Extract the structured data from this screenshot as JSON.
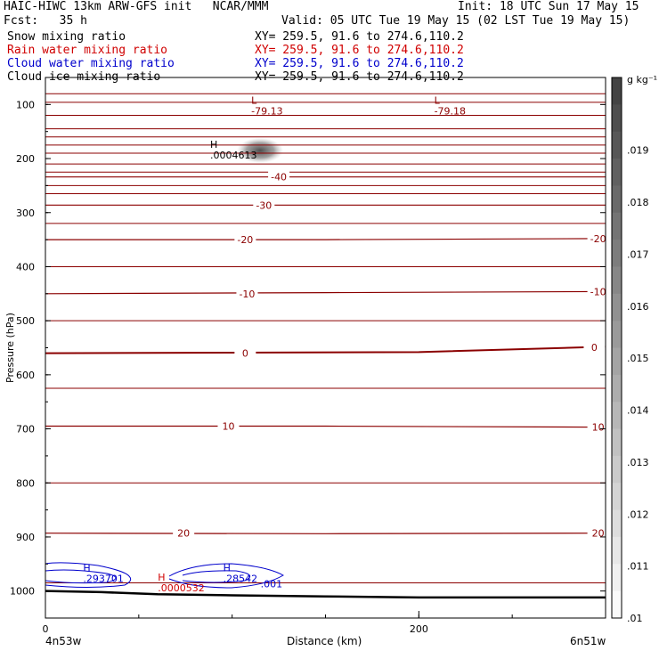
{
  "header": {
    "title": "HAIC-HIWC 13km ARW-GFS init   NCAR/MMM",
    "init": "Init: 18 UTC Sun 17 May 15",
    "fcst": "Fcst:   35 h",
    "valid": "Valid: 05 UTC Tue 19 May 15 (02 LST Tue 19 May 15)"
  },
  "fields": [
    {
      "name": "Snow mixing ratio",
      "xy": "XY= 259.5, 91.6 to 274.6,110.2",
      "color": "#000000"
    },
    {
      "name": "Rain water mixing ratio",
      "xy": "XY= 259.5, 91.6 to 274.6,110.2",
      "color": "#d00000"
    },
    {
      "name": "Cloud water mixing ratio",
      "xy": "XY= 259.5, 91.6 to 274.6,110.2",
      "color": "#0000cc"
    },
    {
      "name": "Cloud ice mixing ratio",
      "xy": "XY= 259.5, 91.6 to 274.6,110.2",
      "color": "#000000"
    }
  ],
  "chart_data": {
    "type": "line",
    "xlabel": "Distance (km)",
    "ylabel": "Pressure (hPa)",
    "xlim": [
      0,
      300
    ],
    "ylim": [
      1050,
      50
    ],
    "x_ticks": [
      0,
      200
    ],
    "x_tick_labels": [
      "0",
      "200"
    ],
    "y_ticks": [
      100,
      200,
      300,
      400,
      500,
      600,
      700,
      800,
      900,
      1000
    ],
    "y_tick_labels": [
      "100",
      "200",
      "300",
      "400",
      "500",
      "600",
      "700",
      "800",
      "900",
      "1000"
    ],
    "left_endpoint": "4n53w",
    "right_endpoint": "6n51w",
    "temperature_isotherms": [
      {
        "label": "-40",
        "values": [
          [
            0,
            234
          ],
          [
            300,
            234
          ]
        ]
      },
      {
        "label": "-30",
        "values": [
          [
            0,
            286
          ],
          [
            300,
            286
          ]
        ]
      },
      {
        "label": "-20",
        "values": [
          [
            0,
            350
          ],
          [
            150,
            350
          ],
          [
            300,
            348
          ]
        ]
      },
      {
        "label": "-10",
        "values": [
          [
            0,
            450
          ],
          [
            150,
            448
          ],
          [
            300,
            446
          ]
        ]
      },
      {
        "label": "0",
        "values": [
          [
            0,
            560
          ],
          [
            100,
            559
          ],
          [
            200,
            558
          ],
          [
            300,
            548
          ]
        ]
      },
      {
        "label": "10",
        "values": [
          [
            0,
            695
          ],
          [
            150,
            695
          ],
          [
            300,
            697
          ]
        ]
      },
      {
        "label": "20",
        "values": [
          [
            0,
            893
          ],
          [
            150,
            894
          ],
          [
            300,
            893
          ]
        ]
      }
    ],
    "temperature_label_positions": [
      {
        "text": "-40",
        "x": 125,
        "p": 234
      },
      {
        "text": "-30",
        "x": 117,
        "p": 286
      },
      {
        "text": "-20",
        "x": 107,
        "p": 350
      },
      {
        "text": "-20",
        "x": 296,
        "p": 348
      },
      {
        "text": "-10",
        "x": 108,
        "p": 450
      },
      {
        "text": "-10",
        "x": 296,
        "p": 446
      },
      {
        "text": "0",
        "x": 107,
        "p": 560
      },
      {
        "text": "0",
        "x": 294,
        "p": 549
      },
      {
        "text": "10",
        "x": 98,
        "p": 695
      },
      {
        "text": "10",
        "x": 296,
        "p": 697
      },
      {
        "text": "20",
        "x": 74,
        "p": 893
      },
      {
        "text": "20",
        "x": 296,
        "p": 893
      }
    ],
    "level_lines_hpa": [
      80,
      96,
      120,
      145,
      160,
      175,
      190,
      210,
      225,
      250,
      265,
      320,
      400,
      500,
      625,
      800,
      985
    ],
    "extrema": [
      {
        "type": "L",
        "value": "-79.13",
        "x": 115,
        "p": 115,
        "color": "#8b0000"
      },
      {
        "type": "L",
        "value": "-79.18",
        "x": 213,
        "p": 115,
        "color": "#8b0000"
      },
      {
        "type": "H",
        "value": ".0004613",
        "x": 93,
        "p": 197,
        "color": "#000000"
      },
      {
        "type": "H",
        "value": ".293701",
        "x": 25,
        "p": 980,
        "color": "#0000cc"
      },
      {
        "type": "H",
        "value": ".28542",
        "x": 100,
        "p": 980,
        "color": "#0000cc"
      },
      {
        "type": "",
        "value": ".001",
        "x": 120,
        "p": 990,
        "color": "#0000cc"
      },
      {
        "type": "H",
        "value": ".0000532",
        "x": 65,
        "p": 997,
        "color": "#d00000"
      }
    ],
    "ice_max": {
      "x": 115,
      "p": 185,
      "value": 0.021
    },
    "colorbar": {
      "unit": "g kg⁻¹",
      "labels": [
        ".019",
        ".018",
        ".017",
        ".016",
        ".015",
        ".014",
        ".013",
        ".012",
        ".011",
        ".01"
      ],
      "n_bands": 20
    },
    "terrain_hpa": [
      [
        0,
        1000
      ],
      [
        30,
        1002
      ],
      [
        60,
        1006
      ],
      [
        100,
        1008
      ],
      [
        150,
        1010
      ],
      [
        200,
        1012
      ],
      [
        250,
        1012
      ],
      [
        300,
        1012
      ]
    ]
  }
}
